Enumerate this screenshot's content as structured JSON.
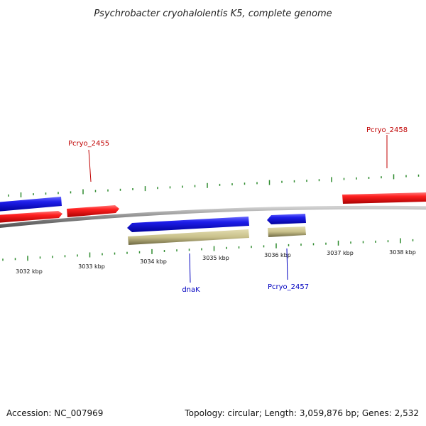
{
  "title": "Psychrobacter cryohalolentis K5, complete genome",
  "footer": {
    "accession": "Accession: NC_007969",
    "summary": "Topology: circular; Length: 3,059,876 bp; Genes: 2,532"
  },
  "colors": {
    "forward_gene": "#e8141b",
    "reverse_gene": "#1a1adf",
    "cds": "#c8c08a",
    "backbone": "#8a8a8a",
    "ticks": "#2e8b2e",
    "label_red": "#c00000",
    "label_blue": "#0000c0"
  },
  "scale": {
    "kbp_ticks": [
      "3032 kbp",
      "3033 kbp",
      "3034 kbp",
      "3035 kbp",
      "3036 kbp",
      "3037 kbp",
      "3038 kbp"
    ]
  },
  "gene_labels": {
    "pcryo_2455": "Pcryo_2455",
    "pcryo_2458": "Pcryo_2458",
    "dnak": "dnaK",
    "pcryo_2457": "Pcryo_2457"
  }
}
